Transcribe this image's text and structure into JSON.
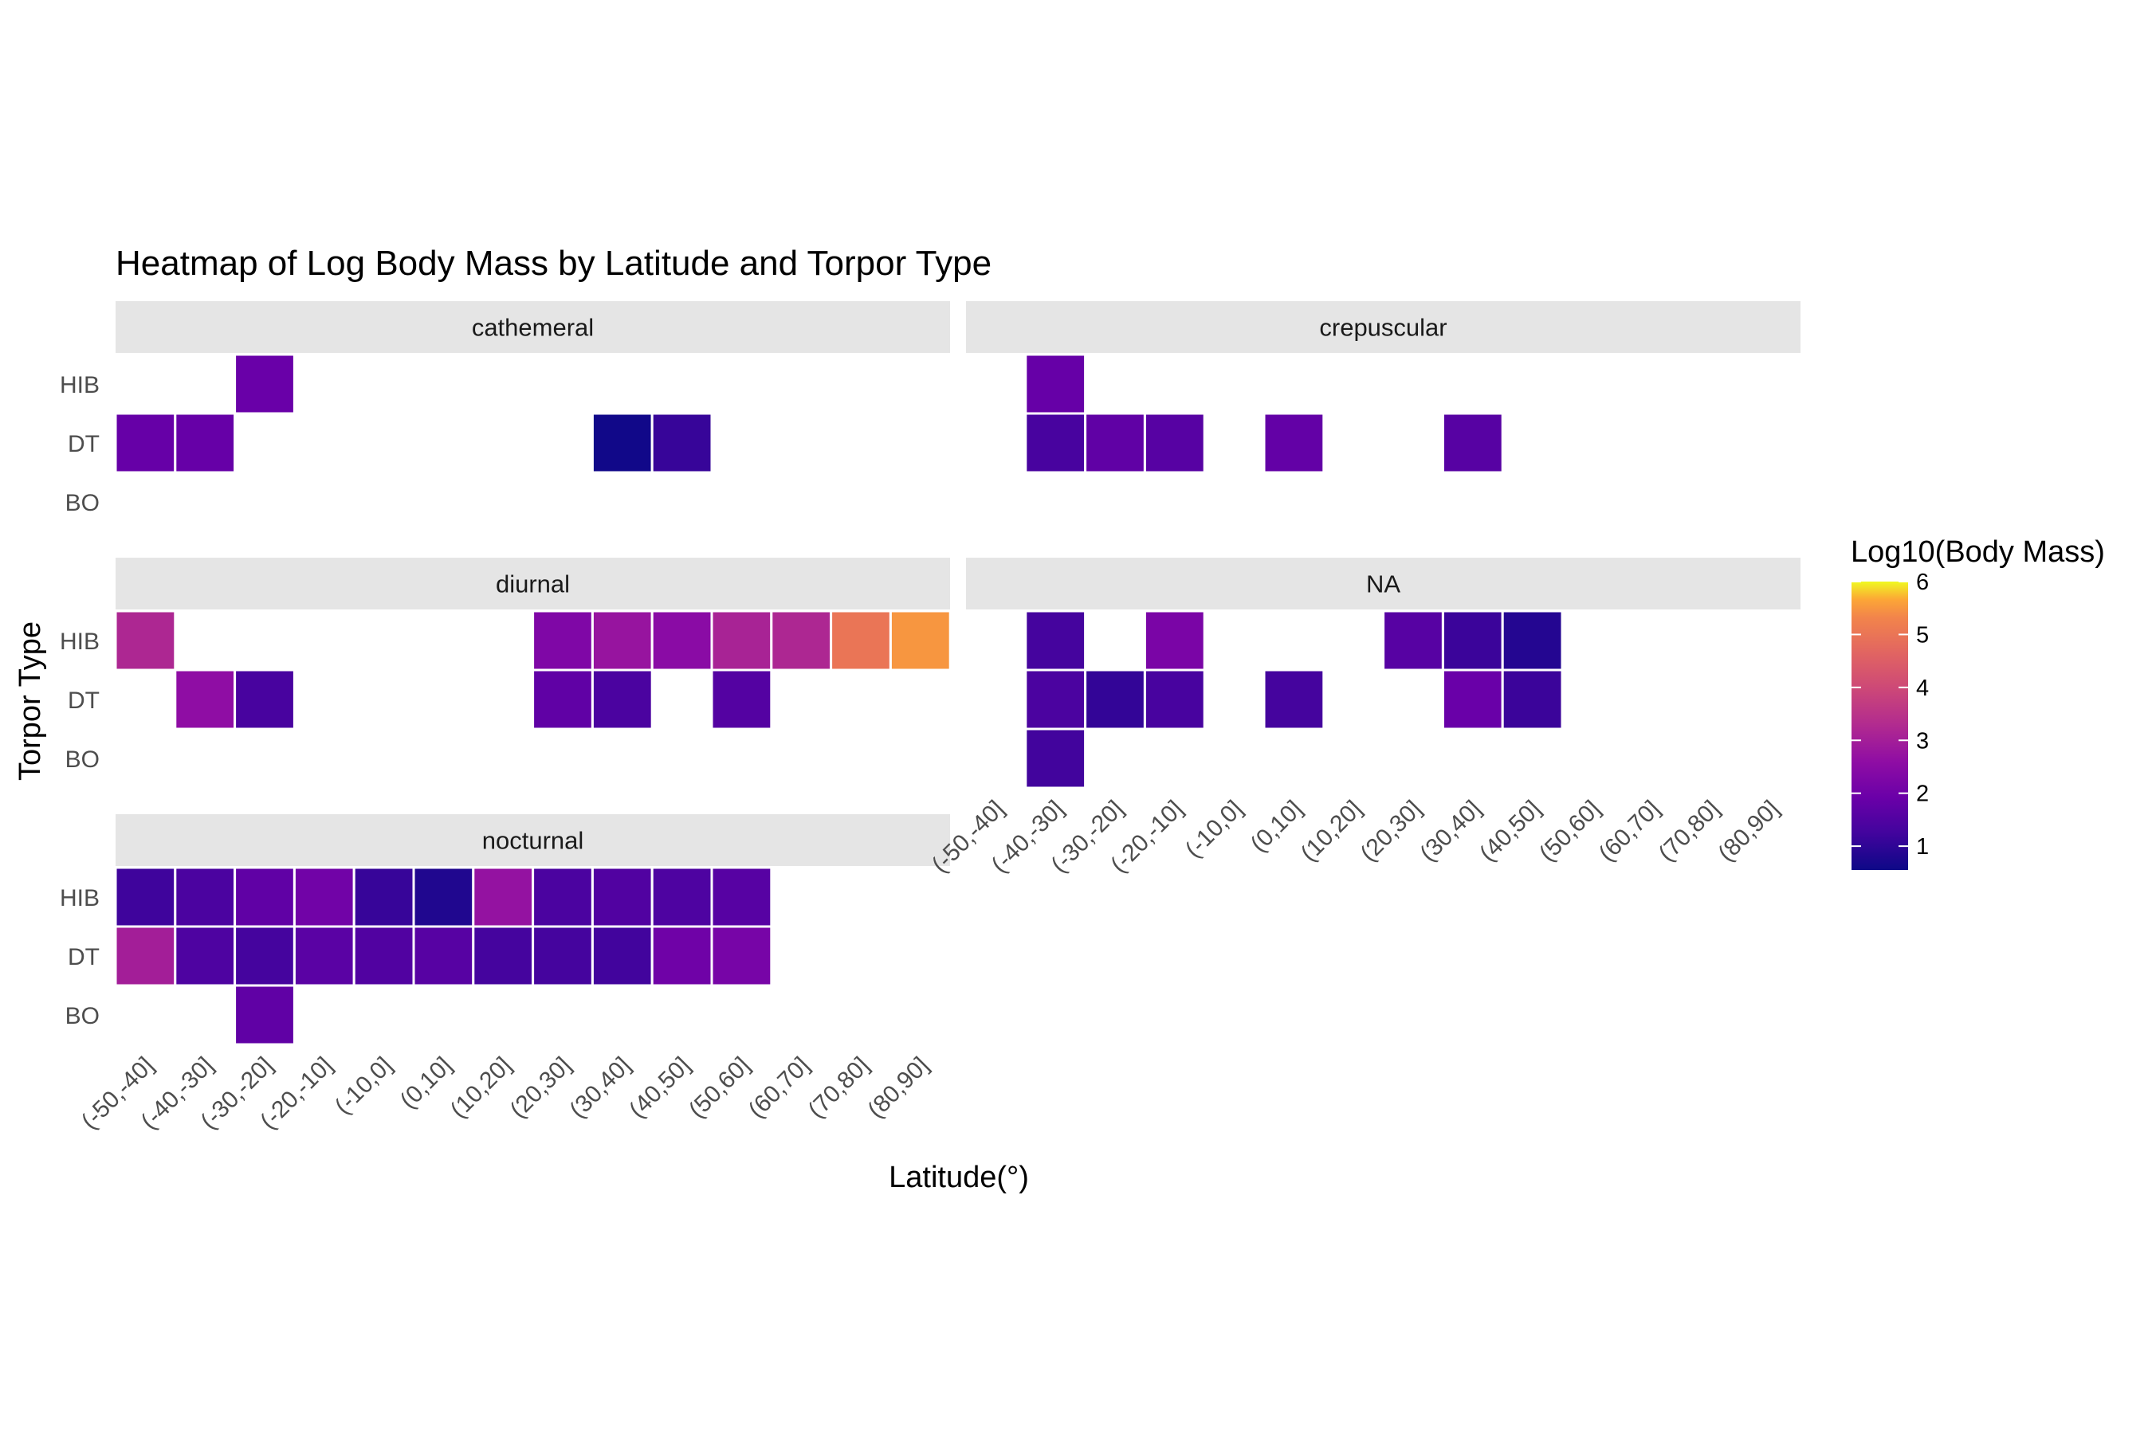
{
  "chart_data": {
    "type": "heatmap",
    "title": "Heatmap of Log Body Mass by Latitude and Torpor Type",
    "xlabel": "Latitude(°)",
    "ylabel": "Torpor Type",
    "x_categories": [
      "(-50,-40]",
      "(-40,-30]",
      "(-30,-20]",
      "(-20,-10]",
      "(-10,0]",
      "(0,10]",
      "(10,20]",
      "(20,30]",
      "(30,40]",
      "(40,50]",
      "(50,60]",
      "(60,70]",
      "(70,80]",
      "(80,90]"
    ],
    "y_categories": [
      "BO",
      "DT",
      "HIB"
    ],
    "legend": {
      "title": "Log10(Body Mass)",
      "ticks": [
        1,
        2,
        3,
        4,
        5,
        6
      ],
      "range": [
        0.55,
        6.0
      ],
      "colormap": "plasma"
    },
    "facets": [
      {
        "name": "cathemeral",
        "cells": [
          {
            "x": "(-30,-20]",
            "y": "HIB",
            "value": 1.9
          },
          {
            "x": "(-50,-40]",
            "y": "DT",
            "value": 1.85
          },
          {
            "x": "(-40,-30]",
            "y": "DT",
            "value": 1.85
          },
          {
            "x": "(30,40]",
            "y": "DT",
            "value": 0.6
          },
          {
            "x": "(40,50]",
            "y": "DT",
            "value": 1.1
          }
        ]
      },
      {
        "name": "crepuscular",
        "cells": [
          {
            "x": "(-40,-30]",
            "y": "HIB",
            "value": 1.85
          },
          {
            "x": "(-40,-30]",
            "y": "DT",
            "value": 1.35
          },
          {
            "x": "(-30,-20]",
            "y": "DT",
            "value": 1.75
          },
          {
            "x": "(-20,-10]",
            "y": "DT",
            "value": 1.6
          },
          {
            "x": "(0,10]",
            "y": "DT",
            "value": 1.8
          },
          {
            "x": "(30,40]",
            "y": "DT",
            "value": 1.6
          }
        ]
      },
      {
        "name": "diurnal",
        "cells": [
          {
            "x": "(-50,-40]",
            "y": "HIB",
            "value": 3.2
          },
          {
            "x": "(20,30]",
            "y": "HIB",
            "value": 2.3
          },
          {
            "x": "(30,40]",
            "y": "HIB",
            "value": 2.75
          },
          {
            "x": "(40,50]",
            "y": "HIB",
            "value": 2.5
          },
          {
            "x": "(50,60]",
            "y": "HIB",
            "value": 3.1
          },
          {
            "x": "(60,70]",
            "y": "HIB",
            "value": 3.2
          },
          {
            "x": "(70,80]",
            "y": "HIB",
            "value": 5.0
          },
          {
            "x": "(80,90]",
            "y": "HIB",
            "value": 5.5
          },
          {
            "x": "(-40,-30]",
            "y": "DT",
            "value": 2.6
          },
          {
            "x": "(-30,-20]",
            "y": "DT",
            "value": 1.35
          },
          {
            "x": "(20,30]",
            "y": "DT",
            "value": 1.75
          },
          {
            "x": "(30,40]",
            "y": "DT",
            "value": 1.4
          },
          {
            "x": "(50,60]",
            "y": "DT",
            "value": 1.55
          }
        ]
      },
      {
        "name": "NA",
        "cells": [
          {
            "x": "(-40,-30]",
            "y": "HIB",
            "value": 1.3
          },
          {
            "x": "(-20,-10]",
            "y": "HIB",
            "value": 2.2
          },
          {
            "x": "(20,30]",
            "y": "HIB",
            "value": 1.6
          },
          {
            "x": "(30,40]",
            "y": "HIB",
            "value": 1.15
          },
          {
            "x": "(40,50]",
            "y": "HIB",
            "value": 0.85
          },
          {
            "x": "(-40,-30]",
            "y": "DT",
            "value": 1.4
          },
          {
            "x": "(-30,-20]",
            "y": "DT",
            "value": 1.05
          },
          {
            "x": "(-20,-10]",
            "y": "DT",
            "value": 1.35
          },
          {
            "x": "(0,10]",
            "y": "DT",
            "value": 1.3
          },
          {
            "x": "(30,40]",
            "y": "DT",
            "value": 1.9
          },
          {
            "x": "(40,50]",
            "y": "DT",
            "value": 1.15
          },
          {
            "x": "(-40,-30]",
            "y": "BO",
            "value": 1.25
          }
        ]
      },
      {
        "name": "nocturnal",
        "cells": [
          {
            "x": "(-50,-40]",
            "y": "HIB",
            "value": 1.2
          },
          {
            "x": "(-40,-30]",
            "y": "HIB",
            "value": 1.4
          },
          {
            "x": "(-30,-20]",
            "y": "HIB",
            "value": 1.75
          },
          {
            "x": "(-20,-10]",
            "y": "HIB",
            "value": 2.05
          },
          {
            "x": "(-10,0]",
            "y": "HIB",
            "value": 1.1
          },
          {
            "x": "(0,10]",
            "y": "HIB",
            "value": 0.8
          },
          {
            "x": "(10,20]",
            "y": "HIB",
            "value": 2.7
          },
          {
            "x": "(20,30]",
            "y": "HIB",
            "value": 1.4
          },
          {
            "x": "(30,40]",
            "y": "HIB",
            "value": 1.5
          },
          {
            "x": "(40,50]",
            "y": "HIB",
            "value": 1.45
          },
          {
            "x": "(50,60]",
            "y": "HIB",
            "value": 1.6
          },
          {
            "x": "(-50,-40]",
            "y": "DT",
            "value": 3.0
          },
          {
            "x": "(-40,-30]",
            "y": "DT",
            "value": 1.45
          },
          {
            "x": "(-30,-20]",
            "y": "DT",
            "value": 1.3
          },
          {
            "x": "(-20,-10]",
            "y": "DT",
            "value": 1.65
          },
          {
            "x": "(-10,0]",
            "y": "DT",
            "value": 1.5
          },
          {
            "x": "(0,10]",
            "y": "DT",
            "value": 1.6
          },
          {
            "x": "(10,20]",
            "y": "DT",
            "value": 1.3
          },
          {
            "x": "(20,30]",
            "y": "DT",
            "value": 1.3
          },
          {
            "x": "(30,40]",
            "y": "DT",
            "value": 1.25
          },
          {
            "x": "(40,50]",
            "y": "DT",
            "value": 2.0
          },
          {
            "x": "(50,60]",
            "y": "DT",
            "value": 2.15
          },
          {
            "x": "(-30,-20]",
            "y": "BO",
            "value": 1.75
          }
        ]
      }
    ]
  }
}
